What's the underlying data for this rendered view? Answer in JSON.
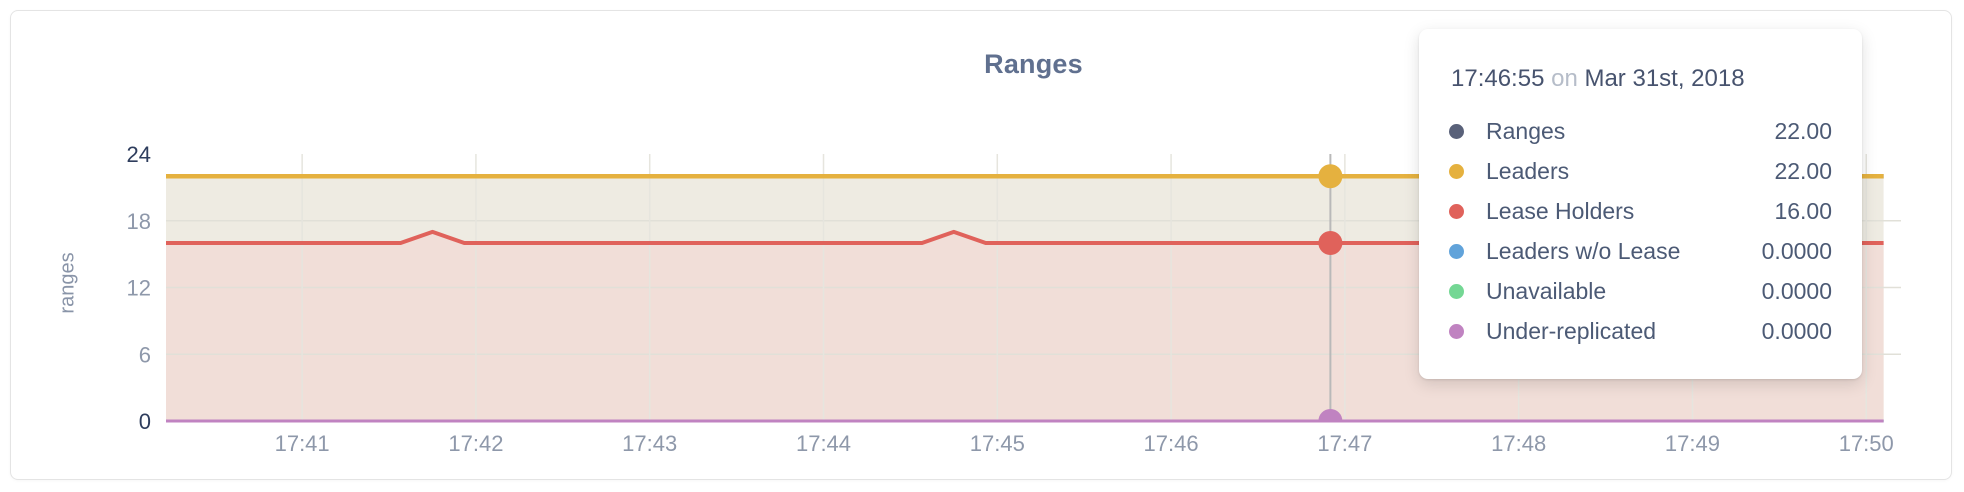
{
  "chart_data": {
    "type": "area",
    "title": "Ranges",
    "xlabel": "",
    "ylabel": "ranges",
    "grid": true,
    "legend_position": "tooltip",
    "x_axis": {
      "unit": "seconds after 17:00",
      "domain": [
        2413,
        3012
      ],
      "ticks": [
        {
          "t": 2460,
          "label": "17:41"
        },
        {
          "t": 2520,
          "label": "17:42"
        },
        {
          "t": 2580,
          "label": "17:43"
        },
        {
          "t": 2640,
          "label": "17:44"
        },
        {
          "t": 2700,
          "label": "17:45"
        },
        {
          "t": 2760,
          "label": "17:46"
        },
        {
          "t": 2820,
          "label": "17:47"
        },
        {
          "t": 2880,
          "label": "17:48"
        },
        {
          "t": 2940,
          "label": "17:49"
        },
        {
          "t": 3000,
          "label": "17:50"
        }
      ]
    },
    "y_axis": {
      "range": [
        0,
        24
      ],
      "ticks": [
        {
          "v": 0,
          "label": "0",
          "emphasized": true,
          "gridline": false
        },
        {
          "v": 6,
          "label": "6",
          "emphasized": false,
          "gridline": true
        },
        {
          "v": 12,
          "label": "12",
          "emphasized": false,
          "gridline": true
        },
        {
          "v": 18,
          "label": "18",
          "emphasized": false,
          "gridline": true
        },
        {
          "v": 24,
          "label": "24",
          "emphasized": true,
          "gridline": false
        }
      ]
    },
    "series": [
      {
        "name": "Ranges",
        "color": "#596179",
        "fill": null,
        "line_width": 4.5,
        "points": [
          [
            2413,
            22
          ],
          [
            3006,
            22
          ]
        ]
      },
      {
        "name": "Leaders",
        "color": "#e5b13f",
        "fill": "#eeebe2",
        "line_width": 4.5,
        "points": [
          [
            2413,
            22
          ],
          [
            3006,
            22
          ]
        ]
      },
      {
        "name": "Lease Holders",
        "color": "#e0625b",
        "fill": "#f1ded8",
        "line_width": 4,
        "points": [
          [
            2413,
            16
          ],
          [
            2494,
            16
          ],
          [
            2505,
            17
          ],
          [
            2516,
            16
          ],
          [
            2674,
            16
          ],
          [
            2685,
            17
          ],
          [
            2696,
            16
          ],
          [
            3006,
            16
          ]
        ]
      },
      {
        "name": "Leaders w/o Lease",
        "color": "#61a3da",
        "fill": null,
        "line_width": 2.5,
        "points": [
          [
            2413,
            0
          ],
          [
            3006,
            0
          ]
        ]
      },
      {
        "name": "Unavailable",
        "color": "#74d794",
        "fill": null,
        "line_width": 2.5,
        "points": [
          [
            2413,
            0
          ],
          [
            3006,
            0
          ]
        ]
      },
      {
        "name": "Under-replicated",
        "color": "#c083c1",
        "fill": null,
        "line_width": 3,
        "points": [
          [
            2413,
            0
          ],
          [
            3006,
            0
          ]
        ]
      }
    ],
    "hover": {
      "t": 2815,
      "time_label": "17:46:55",
      "markers": [
        {
          "series": "Leaders",
          "v": 22
        },
        {
          "series": "Lease Holders",
          "v": 16
        },
        {
          "series": "Under-replicated",
          "v": 0
        }
      ]
    }
  },
  "tooltip": {
    "time": "17:46:55",
    "conjunction": "on",
    "date": "Mar 31st, 2018",
    "rows": [
      {
        "label": "Ranges",
        "value": "22.00",
        "color": "#596179"
      },
      {
        "label": "Leaders",
        "value": "22.00",
        "color": "#e5b13f"
      },
      {
        "label": "Lease Holders",
        "value": "16.00",
        "color": "#e0625b"
      },
      {
        "label": "Leaders w/o Lease",
        "value": "0.0000",
        "color": "#61a3da"
      },
      {
        "label": "Unavailable",
        "value": "0.0000",
        "color": "#74d794"
      },
      {
        "label": "Under-replicated",
        "value": "0.0000",
        "color": "#c083c1"
      }
    ]
  },
  "colors": {
    "title": "#60708f",
    "axis_tick": "#8e98aa",
    "axis_tick_emphasized": "#2e3d5d",
    "gridline_h": "#e1e0d8",
    "gridline_v": "#e6e5de",
    "guideline": "#b9b9b9",
    "card_border": "#e4e4e4"
  }
}
